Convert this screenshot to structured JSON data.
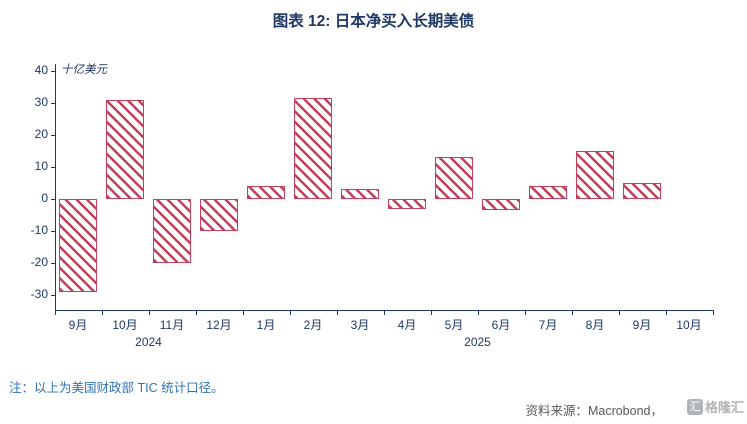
{
  "title": "图表 12: 日本净买入长期美债",
  "y_axis_unit_label": "十亿美元",
  "note": "注：以上为美国财政部 TIC 统计口径。",
  "source": "资料来源：Macrobond，",
  "watermark": "格隆汇",
  "colors": {
    "bar": "#C5405A",
    "title": "#1F3864",
    "axis": "#1F3864",
    "note": "#2E74B5",
    "source_gray": "#595959"
  },
  "chart_data": {
    "type": "bar",
    "title": "图表 12: 日本净买入长期美债",
    "ylabel": "十亿美元",
    "xlabel": "",
    "categories": [
      "9月",
      "10月",
      "11月",
      "12月",
      "1月",
      "2月",
      "3月",
      "4月",
      "5月",
      "6月",
      "7月",
      "8月",
      "9月",
      "10月"
    ],
    "values": [
      -29,
      31,
      -20,
      -10,
      4,
      31.5,
      3,
      -3,
      13,
      -3.5,
      4,
      15,
      5,
      null
    ],
    "year_groups": [
      {
        "label": "2024",
        "start": 0,
        "end": 3
      },
      {
        "label": "2025",
        "start": 4,
        "end": 13
      }
    ],
    "y_ticks": [
      40,
      30,
      20,
      10,
      0,
      -10,
      -20,
      -30
    ],
    "ylim": [
      -30,
      40
    ],
    "grid": false,
    "legend": "none",
    "bar_style": "hatched-diagonal"
  }
}
